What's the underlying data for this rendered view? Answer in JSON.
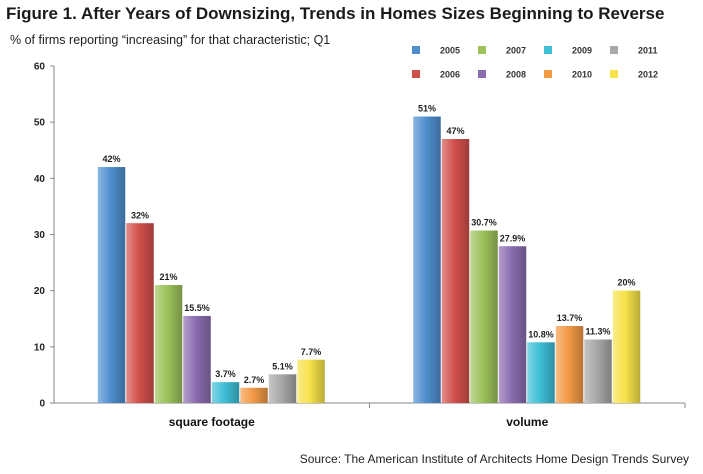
{
  "title": "Figure 1. After Years of Downsizing, Trends in Homes Sizes Beginning to Reverse",
  "subtitle": "% of firms reporting “increasing” for that characteristic; Q1",
  "source": "Source: The American Institute of Architects Home Design Trends Survey",
  "chart_data": {
    "type": "bar",
    "categories": [
      "square footage",
      "volume"
    ],
    "ylim": [
      0,
      60
    ],
    "yticks": [
      0,
      10,
      20,
      30,
      40,
      50,
      60
    ],
    "grid": false,
    "legend_position": "top-right",
    "series": [
      {
        "name": "2005",
        "color": "#4f8fcf",
        "values": [
          42,
          51
        ],
        "labels": [
          "42%",
          "51%"
        ]
      },
      {
        "name": "2006",
        "color": "#d2504c",
        "values": [
          32,
          47
        ],
        "labels": [
          "32%",
          "47%"
        ]
      },
      {
        "name": "2007",
        "color": "#9cc25a",
        "values": [
          21,
          30.7
        ],
        "labels": [
          "21%",
          "30.7%"
        ]
      },
      {
        "name": "2008",
        "color": "#8b6db0",
        "values": [
          15.5,
          27.9
        ],
        "labels": [
          "15.5%",
          "27.9%"
        ]
      },
      {
        "name": "2009",
        "color": "#3ebfd6",
        "values": [
          3.7,
          10.8
        ],
        "labels": [
          "3.7%",
          "10.8%"
        ]
      },
      {
        "name": "2010",
        "color": "#f39a45",
        "values": [
          2.7,
          13.7
        ],
        "labels": [
          "2.7%",
          "13.7%"
        ]
      },
      {
        "name": "2011",
        "color": "#a8a8a8",
        "values": [
          5.1,
          11.3
        ],
        "labels": [
          "5.1%",
          "11.3%"
        ]
      },
      {
        "name": "2012",
        "color": "#f7e24a",
        "values": [
          7.7,
          20
        ],
        "labels": [
          "7.7%",
          "20%"
        ]
      }
    ]
  }
}
